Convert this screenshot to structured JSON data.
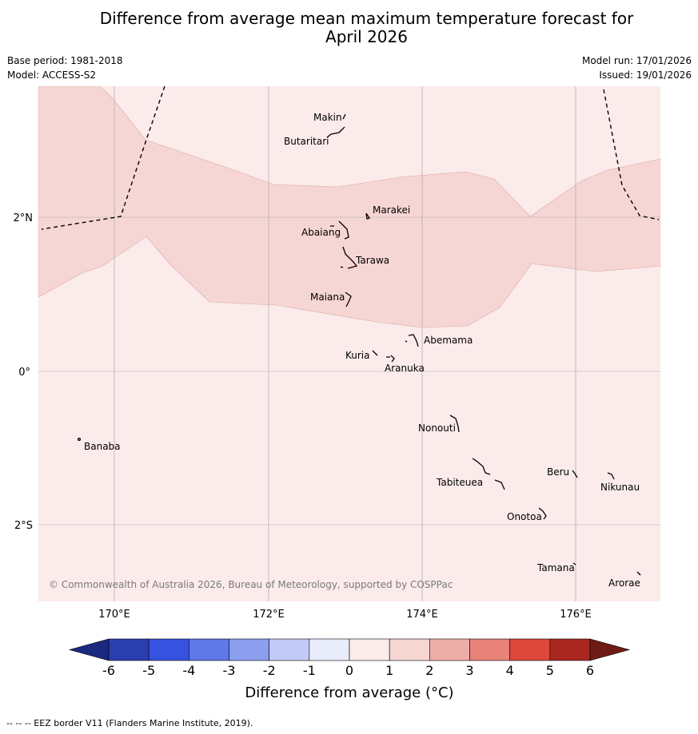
{
  "title": {
    "line1": "Difference from average mean maximum temperature forecast for",
    "line2": "April 2026"
  },
  "meta": {
    "base_period": "Base period: 1981-2018",
    "model": "Model: ACCESS-S2",
    "model_run": "Model run: 17/01/2026",
    "issued": "Issued: 19/01/2026"
  },
  "map": {
    "lon_labels": [
      "170°E",
      "172°E",
      "174°E",
      "176°E"
    ],
    "lat_labels": [
      "2°N",
      "0°",
      "2°S"
    ],
    "islands": [
      {
        "name": "Makin"
      },
      {
        "name": "Butaritari"
      },
      {
        "name": "Marakei"
      },
      {
        "name": "Abaiang"
      },
      {
        "name": "Tarawa"
      },
      {
        "name": "Maiana"
      },
      {
        "name": "Abemama"
      },
      {
        "name": "Kuria"
      },
      {
        "name": "Aranuka"
      },
      {
        "name": "Banaba"
      },
      {
        "name": "Nonouti"
      },
      {
        "name": "Beru"
      },
      {
        "name": "Tabiteuea"
      },
      {
        "name": "Nikunau"
      },
      {
        "name": "Onotoa"
      },
      {
        "name": "Tamana"
      },
      {
        "name": "Arorae"
      }
    ],
    "copyright": "© Commonwealth of Australia 2026, Bureau of Meteorology, supported by COSPPac",
    "colors": {
      "band_0_1": "#fbebea",
      "band_1_2": "#f6d6d4",
      "gridline": "#aaaaaa"
    }
  },
  "colorbar": {
    "ticks": [
      "-6",
      "-5",
      "-4",
      "-3",
      "-2",
      "-1",
      "0",
      "1",
      "2",
      "3",
      "4",
      "5",
      "6"
    ],
    "colors": [
      "#1b2a80",
      "#2a3eb0",
      "#3552e0",
      "#6078e8",
      "#8c9eee",
      "#c2cbf5",
      "#e8ecfb",
      "#fbeceb",
      "#f5d6d3",
      "#eeaea8",
      "#e8837a",
      "#dc483b",
      "#a9271f",
      "#6e1b16"
    ],
    "label": "Difference from average (°C)"
  },
  "footer": "--  --  -- EEZ border V11 (Flanders Marine Institute, 2019)."
}
